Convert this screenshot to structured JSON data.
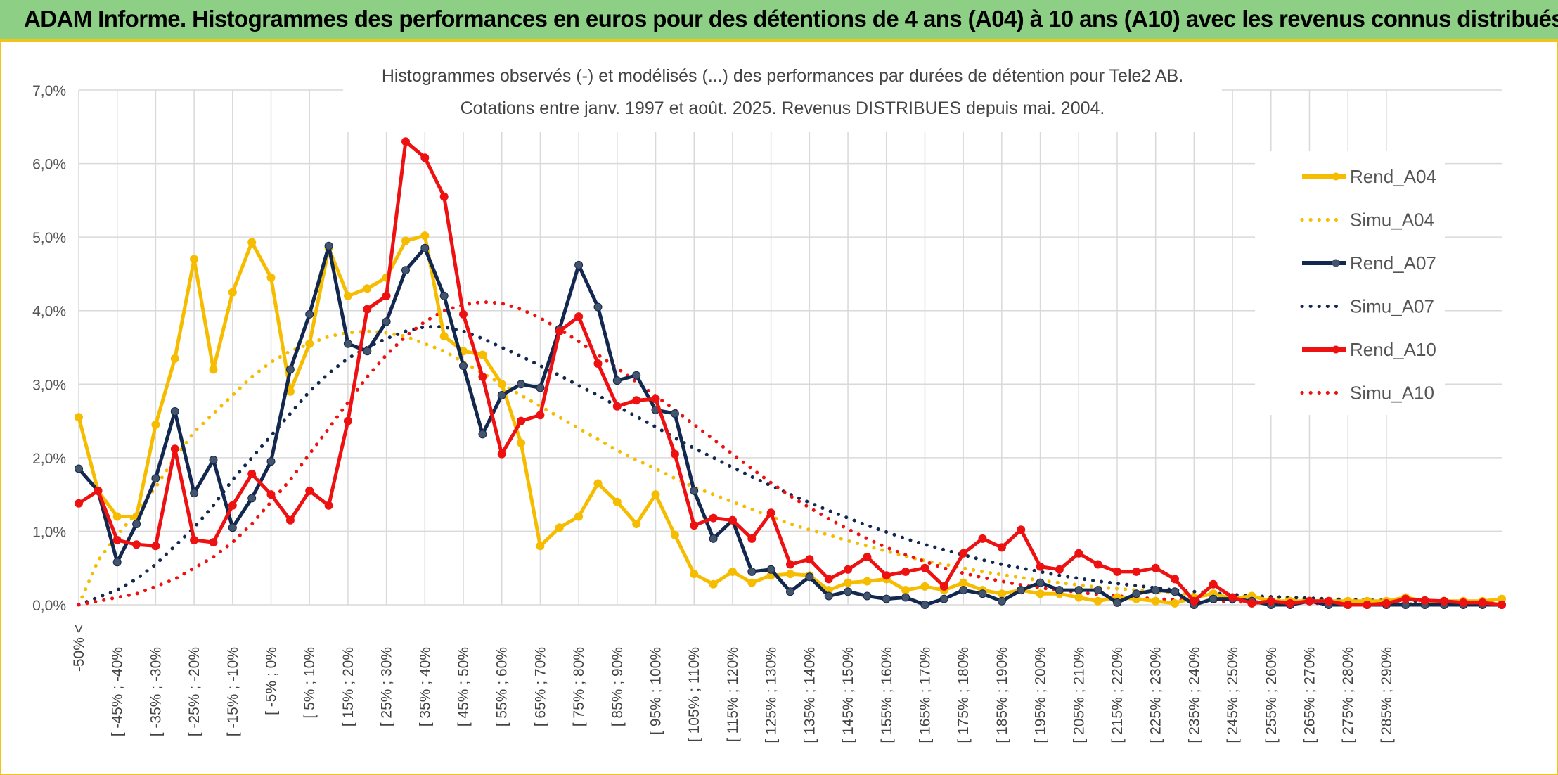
{
  "banner": {
    "title": "ADAM Informe. Histogrammes des performances en euros pour des détentions de 4 ans (A04) à 10 ans (A10) avec les revenus connus distribués"
  },
  "chart_data": {
    "type": "line",
    "title": "Histogrammes observés (-) et modélisés (...) des performances par durées de détention pour Tele2 AB.",
    "subtitle": "Cotations entre janv. 1997 et août. 2025. Revenus DISTRIBUES depuis mai. 2004.",
    "xlabel": "",
    "ylabel": "",
    "ylim": [
      0,
      7
    ],
    "yticks": [
      "0,0%",
      "1,0%",
      "2,0%",
      "3,0%",
      "4,0%",
      "5,0%",
      "6,0%",
      "7,0%"
    ],
    "grid": true,
    "legend_position": "right",
    "xtick_labels": [
      "-50% <",
      "[ -45% ; -40%",
      "[ -35% ; -30%",
      "[ -25% ; -20%",
      "[ -15% ; -10%",
      "[ -5% ; 0%",
      "[ 5% ; 10%",
      "[ 15% ; 20%",
      "[ 25% ; 30%",
      "[ 35% ; 40%",
      "[ 45% ; 50%",
      "[ 55% ; 60%",
      "[ 65% ; 70%",
      "[ 75% ; 80%",
      "[ 85% ; 90%",
      "[ 95% ; 100%",
      "[ 105% ; 110%",
      "[ 115% ; 120%",
      "[ 125% ; 130%",
      "[ 135% ; 140%",
      "[ 145% ; 150%",
      "[ 155% ; 160%",
      "[ 165% ; 170%",
      "[ 175% ; 180%",
      "[ 185% ; 190%",
      "[ 195% ; 200%",
      "[ 205% ; 210%",
      "[ 215% ; 220%",
      "[ 225% ; 230%",
      "[ 235% ; 240%",
      "[ 245% ; 250%",
      "[ 255% ; 260%",
      "[ 265% ; 270%",
      "[ 275% ; 280%",
      "[ 285% ; 290%"
    ],
    "series": [
      {
        "name": "Rend_A04",
        "style": "solid",
        "color": "#f5bc00",
        "values": [
          2.55,
          1.55,
          1.2,
          1.2,
          2.45,
          3.35,
          4.7,
          3.2,
          4.25,
          4.93,
          4.45,
          2.9,
          3.55,
          4.85,
          4.2,
          4.3,
          4.45,
          4.95,
          5.02,
          3.65,
          3.45,
          3.4,
          3.0,
          2.2,
          0.8,
          1.05,
          1.2,
          1.65,
          1.4,
          1.1,
          1.5,
          0.95,
          0.42,
          0.28,
          0.45,
          0.3,
          0.4,
          0.42,
          0.4,
          0.2,
          0.3,
          0.32,
          0.35,
          0.2,
          0.25,
          0.2,
          0.3,
          0.2,
          0.15,
          0.2,
          0.15,
          0.15,
          0.1,
          0.05,
          0.1,
          0.08,
          0.05,
          0.02,
          0.1,
          0.15,
          0.08,
          0.12,
          0.05,
          0.05,
          0.05,
          0.05,
          0.05,
          0.05,
          0.05,
          0.1,
          0.05,
          0.05,
          0.05,
          0.05,
          0.08
        ]
      },
      {
        "name": "Simu_A04",
        "style": "dotted",
        "color": "#f5bc00",
        "values": [
          0.0,
          0.6,
          0.95,
          1.25,
          1.6,
          2.0,
          2.35,
          2.6,
          2.85,
          3.1,
          3.3,
          3.45,
          3.55,
          3.65,
          3.7,
          3.72,
          3.7,
          3.65,
          3.55,
          3.45,
          3.3,
          3.15,
          3.0,
          2.85,
          2.7,
          2.55,
          2.4,
          2.25,
          2.1,
          1.97,
          1.85,
          1.72,
          1.6,
          1.5,
          1.4,
          1.3,
          1.2,
          1.1,
          1.02,
          0.95,
          0.87,
          0.8,
          0.73,
          0.66,
          0.6,
          0.55,
          0.5,
          0.45,
          0.41,
          0.37,
          0.33,
          0.3,
          0.27,
          0.24,
          0.22,
          0.2,
          0.18,
          0.16,
          0.14,
          0.13,
          0.12,
          0.11,
          0.1,
          0.09,
          0.08,
          0.08,
          0.07,
          0.07,
          0.06,
          0.06,
          0.05,
          0.05,
          0.05,
          0.04,
          0.04
        ]
      },
      {
        "name": "Rend_A07",
        "style": "solid",
        "color": "#13284f",
        "values": [
          1.85,
          1.55,
          0.58,
          1.1,
          1.72,
          2.63,
          1.52,
          1.97,
          1.05,
          1.45,
          1.95,
          3.2,
          3.95,
          4.88,
          3.55,
          3.45,
          3.85,
          4.55,
          4.85,
          4.2,
          3.25,
          2.32,
          2.85,
          3.0,
          2.95,
          3.75,
          4.62,
          4.05,
          3.05,
          3.12,
          2.65,
          2.6,
          1.55,
          0.9,
          1.15,
          0.45,
          0.48,
          0.18,
          0.38,
          0.12,
          0.18,
          0.12,
          0.08,
          0.1,
          0.0,
          0.08,
          0.2,
          0.15,
          0.05,
          0.2,
          0.3,
          0.2,
          0.2,
          0.2,
          0.03,
          0.15,
          0.2,
          0.18,
          0.0,
          0.08,
          0.08,
          0.05,
          0.0,
          0.0,
          0.05,
          0.0,
          0.0,
          0.0,
          0.0,
          0.0,
          0.0,
          0.0,
          0.0,
          0.0,
          0.0
        ]
      },
      {
        "name": "Simu_A07",
        "style": "dotted",
        "color": "#13284f",
        "values": [
          0.0,
          0.1,
          0.2,
          0.35,
          0.55,
          0.8,
          1.05,
          1.35,
          1.7,
          2.0,
          2.3,
          2.6,
          2.9,
          3.15,
          3.35,
          3.5,
          3.62,
          3.72,
          3.78,
          3.78,
          3.72,
          3.62,
          3.5,
          3.38,
          3.25,
          3.12,
          2.98,
          2.85,
          2.7,
          2.56,
          2.42,
          2.27,
          2.13,
          2.0,
          1.87,
          1.74,
          1.62,
          1.5,
          1.39,
          1.28,
          1.18,
          1.08,
          0.99,
          0.9,
          0.82,
          0.75,
          0.68,
          0.61,
          0.55,
          0.5,
          0.45,
          0.4,
          0.36,
          0.32,
          0.29,
          0.26,
          0.23,
          0.2,
          0.18,
          0.16,
          0.14,
          0.12,
          0.11,
          0.1,
          0.09,
          0.08,
          0.07,
          0.06,
          0.06,
          0.05,
          0.05,
          0.04,
          0.04,
          0.03,
          0.03
        ]
      },
      {
        "name": "Rend_A10",
        "style": "solid",
        "color": "#ee1111",
        "values": [
          1.38,
          1.55,
          0.88,
          0.82,
          0.8,
          2.12,
          0.88,
          0.85,
          1.35,
          1.78,
          1.5,
          1.15,
          1.55,
          1.35,
          2.5,
          4.02,
          4.2,
          6.3,
          6.08,
          5.55,
          3.95,
          3.1,
          2.05,
          2.5,
          2.58,
          3.72,
          3.92,
          3.28,
          2.7,
          2.78,
          2.8,
          2.05,
          1.08,
          1.18,
          1.15,
          0.9,
          1.25,
          0.55,
          0.62,
          0.35,
          0.48,
          0.65,
          0.4,
          0.45,
          0.5,
          0.25,
          0.7,
          0.9,
          0.78,
          1.02,
          0.52,
          0.48,
          0.7,
          0.55,
          0.45,
          0.45,
          0.5,
          0.35,
          0.05,
          0.28,
          0.1,
          0.02,
          0.05,
          0.02,
          0.05,
          0.05,
          0.0,
          0.0,
          0.02,
          0.08,
          0.06,
          0.05,
          0.03,
          0.03,
          0.0
        ]
      },
      {
        "name": "Simu_A10",
        "style": "dotted",
        "color": "#ee1111",
        "values": [
          0.0,
          0.05,
          0.1,
          0.15,
          0.25,
          0.35,
          0.5,
          0.65,
          0.85,
          1.1,
          1.4,
          1.7,
          2.05,
          2.4,
          2.75,
          3.1,
          3.4,
          3.65,
          3.85,
          4.0,
          4.08,
          4.12,
          4.1,
          4.02,
          3.9,
          3.75,
          3.58,
          3.4,
          3.22,
          3.03,
          2.84,
          2.65,
          2.45,
          2.25,
          2.05,
          1.85,
          1.66,
          1.48,
          1.32,
          1.17,
          1.03,
          0.9,
          0.78,
          0.68,
          0.59,
          0.5,
          0.43,
          0.37,
          0.32,
          0.27,
          0.23,
          0.2,
          0.17,
          0.14,
          0.12,
          0.1,
          0.08,
          0.07,
          0.06,
          0.05,
          0.04,
          0.04,
          0.03,
          0.03,
          0.02,
          0.02,
          0.02,
          0.02,
          0.01,
          0.01,
          0.01,
          0.01,
          0.01,
          0.01,
          0.01
        ]
      }
    ]
  }
}
